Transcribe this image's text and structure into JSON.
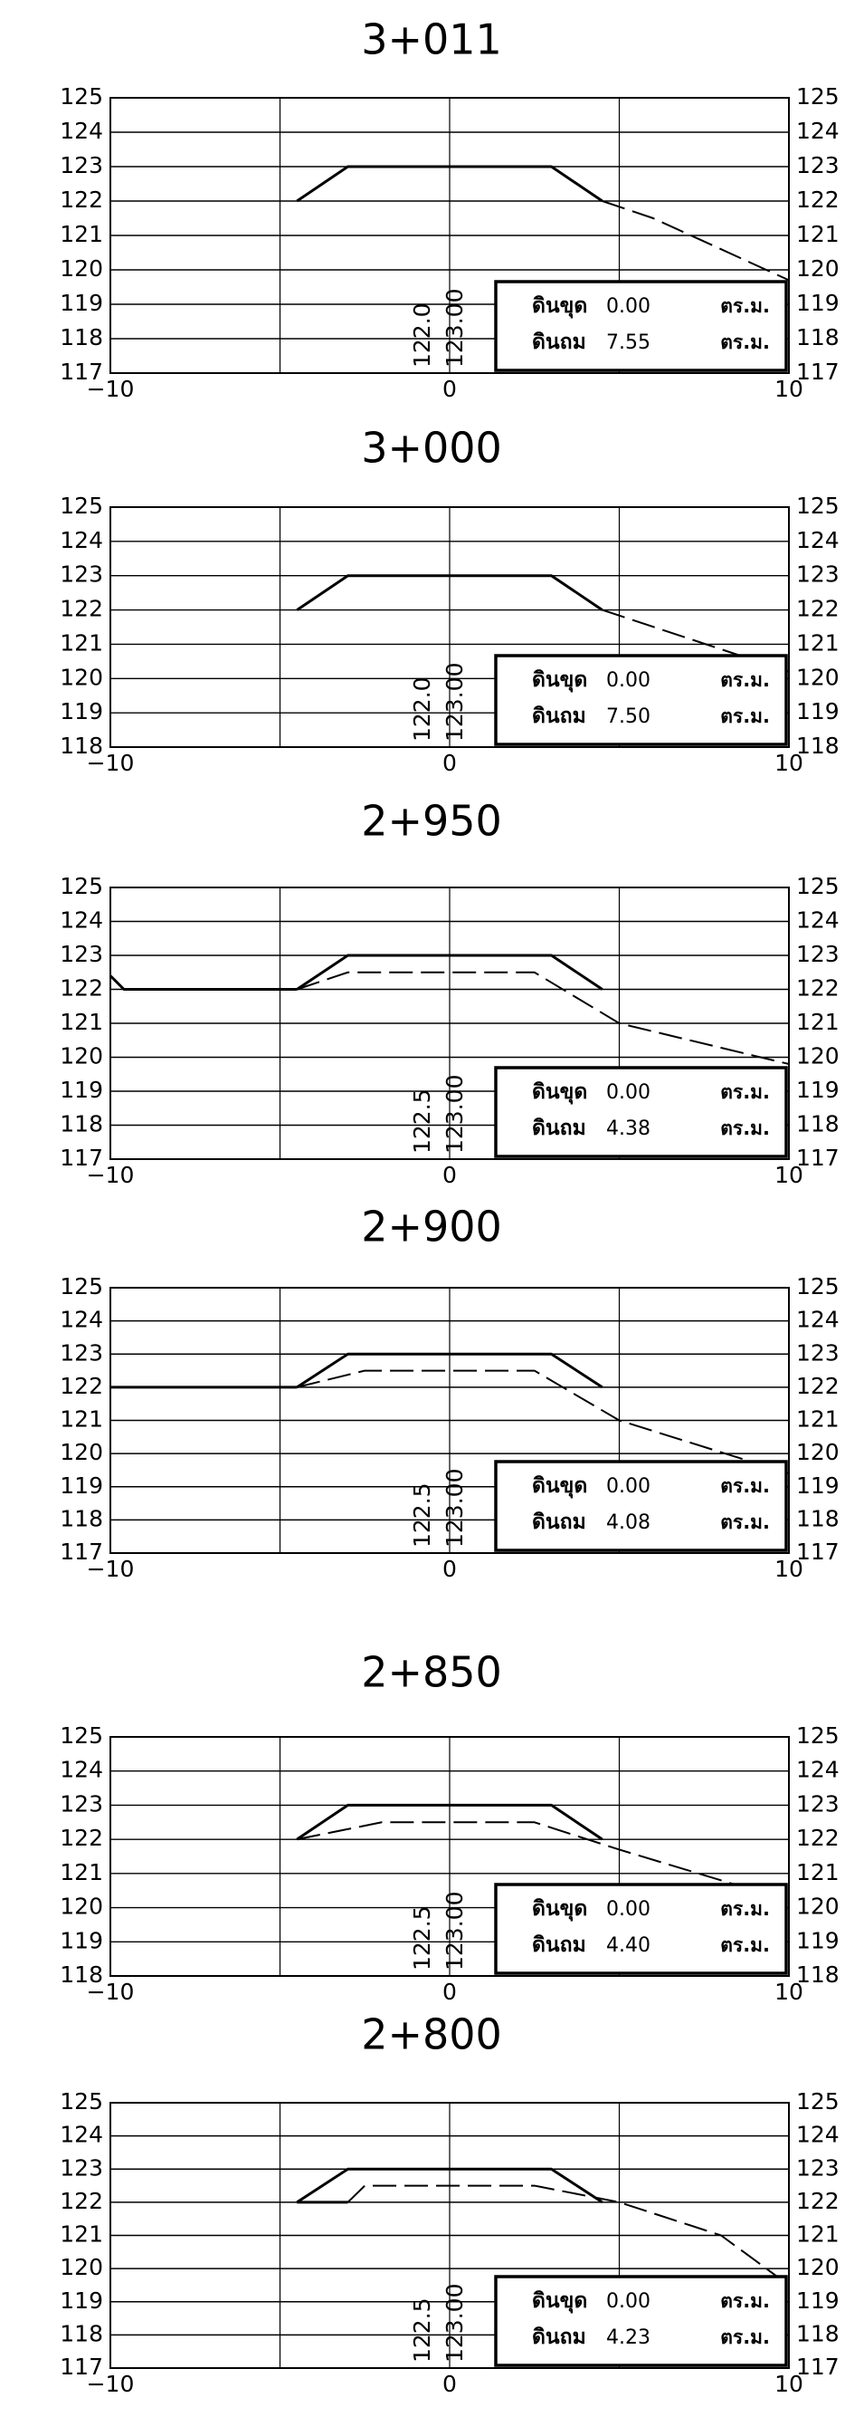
{
  "chart_data": [
    {
      "type": "line",
      "title": "3+011",
      "xlim": [
        -10,
        10
      ],
      "ylim": [
        117,
        125
      ],
      "x_ticks": [
        "−10",
        "0",
        "10"
      ],
      "y_ticks": [
        "125",
        "124",
        "123",
        "122",
        "121",
        "120",
        "119",
        "118",
        "117"
      ],
      "grid": true,
      "series": [
        {
          "style": "solid",
          "x": [
            -4.5,
            -3,
            3,
            4.5
          ],
          "y": [
            122,
            123,
            123,
            122
          ]
        },
        {
          "style": "dashed",
          "x": [
            4.5,
            6,
            10
          ],
          "y": [
            122,
            121.5,
            119.7
          ]
        }
      ],
      "annotations": [
        "122.0",
        "123.00"
      ],
      "table": [
        {
          "label": "ดินขุด",
          "value": "0.00",
          "unit": "ตร.ม."
        },
        {
          "label": "ดินถม",
          "value": "7.55",
          "unit": "ตร.ม."
        }
      ]
    },
    {
      "type": "line",
      "title": "3+000",
      "xlim": [
        -10,
        10
      ],
      "ylim": [
        118,
        125
      ],
      "x_ticks": [
        "−10",
        "0",
        "10"
      ],
      "y_ticks": [
        "125",
        "124",
        "123",
        "122",
        "121",
        "120",
        "119",
        "118"
      ],
      "grid": true,
      "series": [
        {
          "style": "solid",
          "x": [
            -4.5,
            -3,
            3,
            4.5
          ],
          "y": [
            122,
            123,
            123,
            122
          ]
        },
        {
          "style": "dashed",
          "x": [
            4.5,
            10
          ],
          "y": [
            122,
            120.2
          ]
        }
      ],
      "annotations": [
        "122.0",
        "123.00"
      ],
      "table": [
        {
          "label": "ดินขุด",
          "value": "0.00",
          "unit": "ตร.ม."
        },
        {
          "label": "ดินถม",
          "value": "7.50",
          "unit": "ตร.ม."
        }
      ]
    },
    {
      "type": "line",
      "title": "2+950",
      "xlim": [
        -10,
        10
      ],
      "ylim": [
        117,
        125
      ],
      "x_ticks": [
        "−10",
        "0",
        "10"
      ],
      "y_ticks": [
        "125",
        "124",
        "123",
        "122",
        "121",
        "120",
        "119",
        "118",
        "117"
      ],
      "grid": true,
      "series": [
        {
          "style": "solid",
          "x": [
            -4.5,
            -3,
            3,
            4.5
          ],
          "y": [
            122,
            123,
            123,
            122
          ]
        },
        {
          "style": "dashed",
          "x": [
            -4.5,
            -3,
            2.5,
            5,
            10
          ],
          "y": [
            122,
            122.5,
            122.5,
            121,
            119.8
          ]
        },
        {
          "style": "solid",
          "x": [
            -10,
            -9.6,
            -4.5
          ],
          "y": [
            122.4,
            122,
            122
          ]
        }
      ],
      "annotations": [
        "122.5",
        "123.00"
      ],
      "table": [
        {
          "label": "ดินขุด",
          "value": "0.00",
          "unit": "ตร.ม."
        },
        {
          "label": "ดินถม",
          "value": "4.38",
          "unit": "ตร.ม."
        }
      ]
    },
    {
      "type": "line",
      "title": "2+900",
      "xlim": [
        -10,
        10
      ],
      "ylim": [
        117,
        125
      ],
      "x_ticks": [
        "−10",
        "0",
        "10"
      ],
      "y_ticks": [
        "125",
        "124",
        "123",
        "122",
        "121",
        "120",
        "119",
        "118",
        "117"
      ],
      "grid": true,
      "series": [
        {
          "style": "solid",
          "x": [
            -4.5,
            -3,
            3,
            4.5
          ],
          "y": [
            122,
            123,
            123,
            122
          ]
        },
        {
          "style": "dashed",
          "x": [
            -4.5,
            -2.5,
            2.5,
            5,
            10
          ],
          "y": [
            122,
            122.5,
            122.5,
            121,
            119.4
          ]
        },
        {
          "style": "solid",
          "x": [
            -10,
            -4.5
          ],
          "y": [
            122,
            122
          ]
        }
      ],
      "annotations": [
        "122.5",
        "123.00"
      ],
      "table": [
        {
          "label": "ดินขุด",
          "value": "0.00",
          "unit": "ตร.ม."
        },
        {
          "label": "ดินถม",
          "value": "4.08",
          "unit": "ตร.ม."
        }
      ]
    },
    {
      "type": "line",
      "title": "2+850",
      "xlim": [
        -10,
        10
      ],
      "ylim": [
        118,
        125
      ],
      "x_ticks": [
        "−10",
        "0",
        "10"
      ],
      "y_ticks": [
        "125",
        "124",
        "123",
        "122",
        "121",
        "120",
        "119",
        "118"
      ],
      "grid": true,
      "series": [
        {
          "style": "solid",
          "x": [
            -4.5,
            -3,
            3,
            4.5
          ],
          "y": [
            122,
            123,
            123,
            122
          ]
        },
        {
          "style": "dashed",
          "x": [
            -4.5,
            -2,
            2.5,
            5,
            10
          ],
          "y": [
            122,
            122.5,
            122.5,
            121.7,
            120.2
          ]
        }
      ],
      "annotations": [
        "122.5",
        "123.00"
      ],
      "table": [
        {
          "label": "ดินขุด",
          "value": "0.00",
          "unit": "ตร.ม."
        },
        {
          "label": "ดินถม",
          "value": "4.40",
          "unit": "ตร.ม."
        }
      ]
    },
    {
      "type": "line",
      "title": "2+800",
      "xlim": [
        -10,
        10
      ],
      "ylim": [
        117,
        125
      ],
      "x_ticks": [
        "−10",
        "0",
        "10"
      ],
      "y_ticks": [
        "125",
        "124",
        "123",
        "122",
        "121",
        "120",
        "119",
        "118",
        "117"
      ],
      "grid": true,
      "series": [
        {
          "style": "solid",
          "x": [
            -4.5,
            -3,
            3,
            4.5
          ],
          "y": [
            122,
            123,
            123,
            122
          ]
        },
        {
          "style": "dashed",
          "x": [
            -3,
            -2.5,
            2.5,
            5,
            8,
            10
          ],
          "y": [
            122,
            122.5,
            122.5,
            122,
            121,
            119.5
          ]
        },
        {
          "style": "solid",
          "x": [
            -4.5,
            -3
          ],
          "y": [
            122,
            122
          ]
        }
      ],
      "annotations": [
        "122.5",
        "123.00"
      ],
      "table": [
        {
          "label": "ดินขุด",
          "value": "0.00",
          "unit": "ตร.ม."
        },
        {
          "label": "ดินถม",
          "value": "4.23",
          "unit": "ตร.ม."
        }
      ]
    }
  ]
}
